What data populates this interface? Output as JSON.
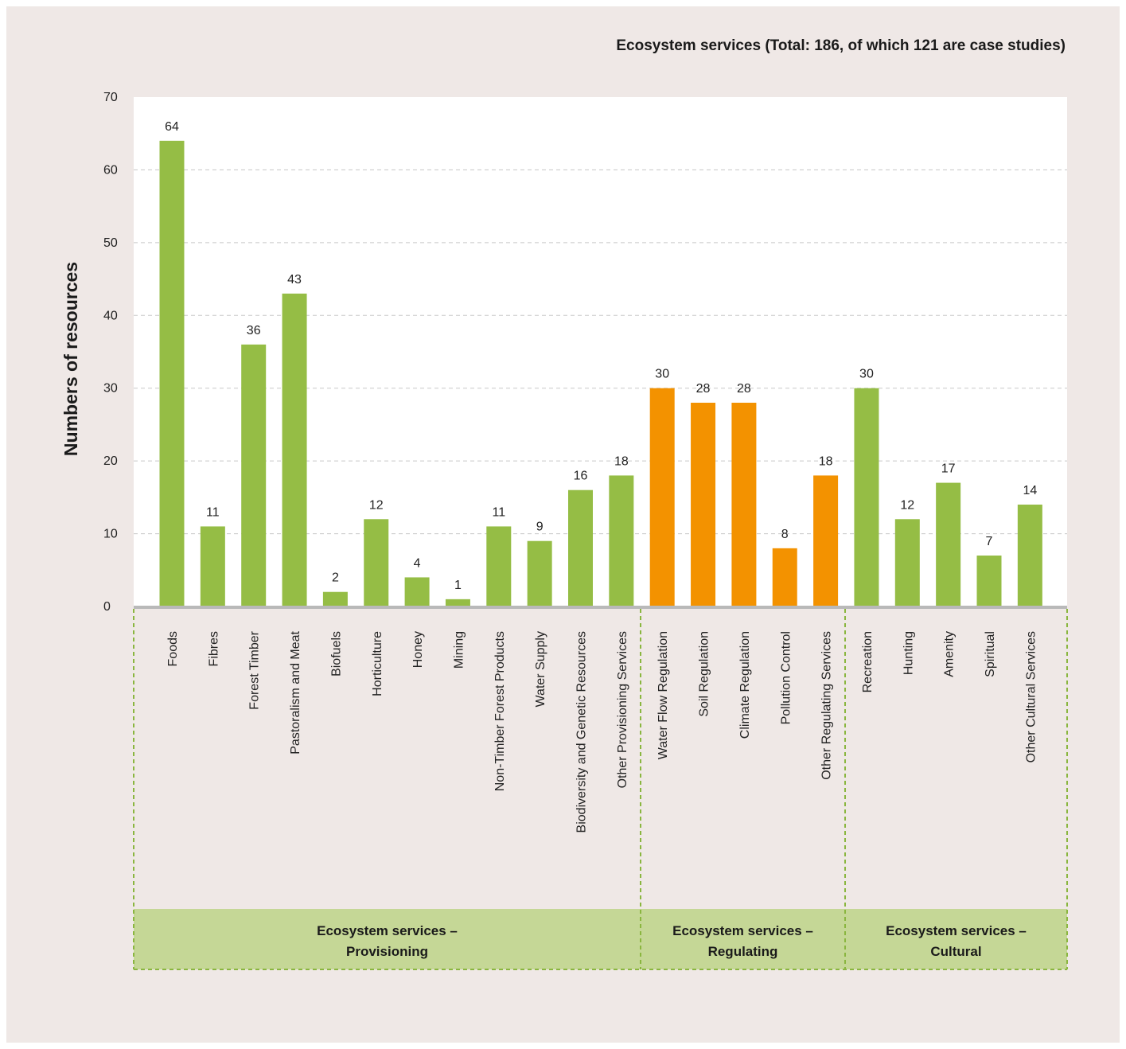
{
  "chart_data": {
    "type": "bar",
    "title": "Ecosystem services (Total: 186, of which 121 are case studies)",
    "xlabel": "",
    "ylabel": "Numbers of resources",
    "ylim": [
      0,
      70
    ],
    "yticks": [
      0,
      10,
      20,
      30,
      40,
      50,
      60,
      70
    ],
    "grid": true,
    "categories": [
      "Foods",
      "Fibres",
      "Forest Timber",
      "Pastoralism and Meat",
      "Biofuels",
      "Horticulture",
      "Honey",
      "Mining",
      "Non-Timber Forest Products",
      "Water Supply",
      "Biodiversity and Genetic Resources",
      "Other Provisioning Services",
      "Water Flow Regulation",
      "Soil Regulation",
      "Climate Regulation",
      "Pollution Control",
      "Other Regulating Services",
      "Recreation",
      "Hunting",
      "Amenity",
      "Spiritual",
      "Other Cultural Services"
    ],
    "values": [
      64,
      11,
      36,
      43,
      2,
      12,
      4,
      1,
      11,
      9,
      16,
      18,
      30,
      28,
      28,
      8,
      18,
      30,
      12,
      17,
      7,
      14
    ],
    "groups": [
      {
        "label_lines": [
          "Ecosystem services –",
          "Provisioning"
        ],
        "start": 0,
        "end": 11,
        "bar_color": "#95bd45"
      },
      {
        "label_lines": [
          "Ecosystem services –",
          "Regulating"
        ],
        "start": 12,
        "end": 16,
        "bar_color": "#f39200"
      },
      {
        "label_lines": [
          "Ecosystem services –",
          "Cultural"
        ],
        "start": 17,
        "end": 21,
        "bar_color": "#95bd45"
      }
    ],
    "colors": {
      "provisioning": "#95bd45",
      "regulating": "#f39200",
      "cultural": "#95bd45",
      "group_band": "#c5d796",
      "divider": "#8ab63f",
      "baseline": "#b9b9b9",
      "gridline": "#c8c8c8",
      "plot_background": "#ffffff",
      "page_background": "#efe8e6"
    }
  }
}
